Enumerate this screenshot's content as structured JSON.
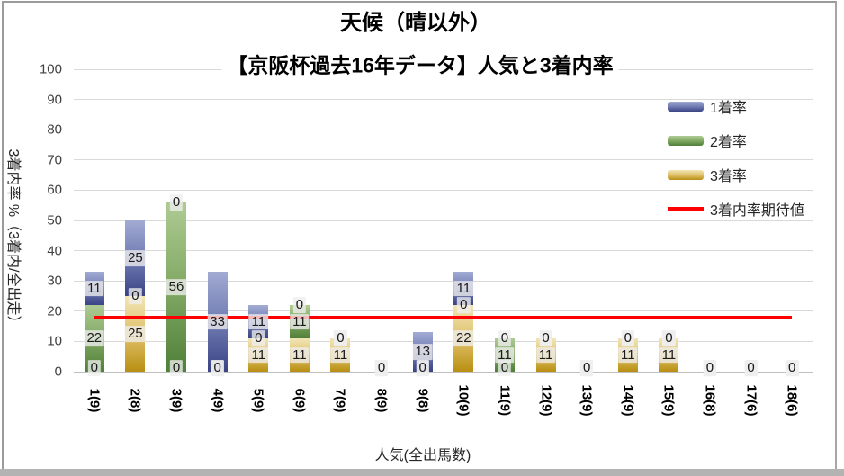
{
  "chart_data": {
    "type": "bar",
    "variant": "stacked-bars-with-line-overlay",
    "title": "天候（晴以外）",
    "subtitle": "【京阪杯過去16年データ】人気と3着内率",
    "xlabel": "人気(全出馬数)",
    "ylabel": "3着内率 %（3着内/全出走）",
    "ylim": [
      0,
      100
    ],
    "ytick_step": 10,
    "grid": "horizontal",
    "legend_position": "upper-right-inside",
    "categories": [
      "1(9)",
      "2(8)",
      "3(9)",
      "4(9)",
      "5(9)",
      "6(9)",
      "7(9)",
      "8(9)",
      "9(8)",
      "10(9)",
      "11(9)",
      "12(9)",
      "13(9)",
      "14(9)",
      "15(9)",
      "16(8)",
      "17(6)",
      "18(6)"
    ],
    "series": [
      {
        "name": "1着率",
        "stack_order": 3,
        "color_top": "#a2abd3",
        "color_bottom": "#3a4384",
        "values": [
          11,
          25,
          0,
          33,
          11,
          0,
          0,
          0,
          13,
          11,
          0,
          0,
          0,
          0,
          0,
          0,
          0,
          0
        ]
      },
      {
        "name": "2着率",
        "stack_order": 2,
        "color_top": "#aecb94",
        "color_bottom": "#4f7f39",
        "values": [
          22,
          0,
          56,
          0,
          0,
          11,
          0,
          0,
          0,
          0,
          11,
          0,
          0,
          0,
          0,
          0,
          0,
          0
        ]
      },
      {
        "name": "3着率",
        "stack_order": 1,
        "color_top": "#f2e5b6",
        "color_bottom": "#b88f13",
        "values": [
          0,
          25,
          0,
          0,
          11,
          11,
          11,
          0,
          0,
          22,
          0,
          11,
          0,
          11,
          11,
          0,
          0,
          0
        ]
      }
    ],
    "line_series": {
      "name": "3着内率期待値",
      "color": "#ff0000",
      "value": 18
    },
    "data_labels_visible": true
  },
  "legend": {
    "items": [
      {
        "label": "1着率",
        "type": "swatch",
        "class": "seg-win"
      },
      {
        "label": "2着率",
        "type": "swatch",
        "class": "seg-place"
      },
      {
        "label": "3着率",
        "type": "swatch",
        "class": "seg-show"
      },
      {
        "label": "3着内率期待値",
        "type": "line"
      }
    ]
  }
}
